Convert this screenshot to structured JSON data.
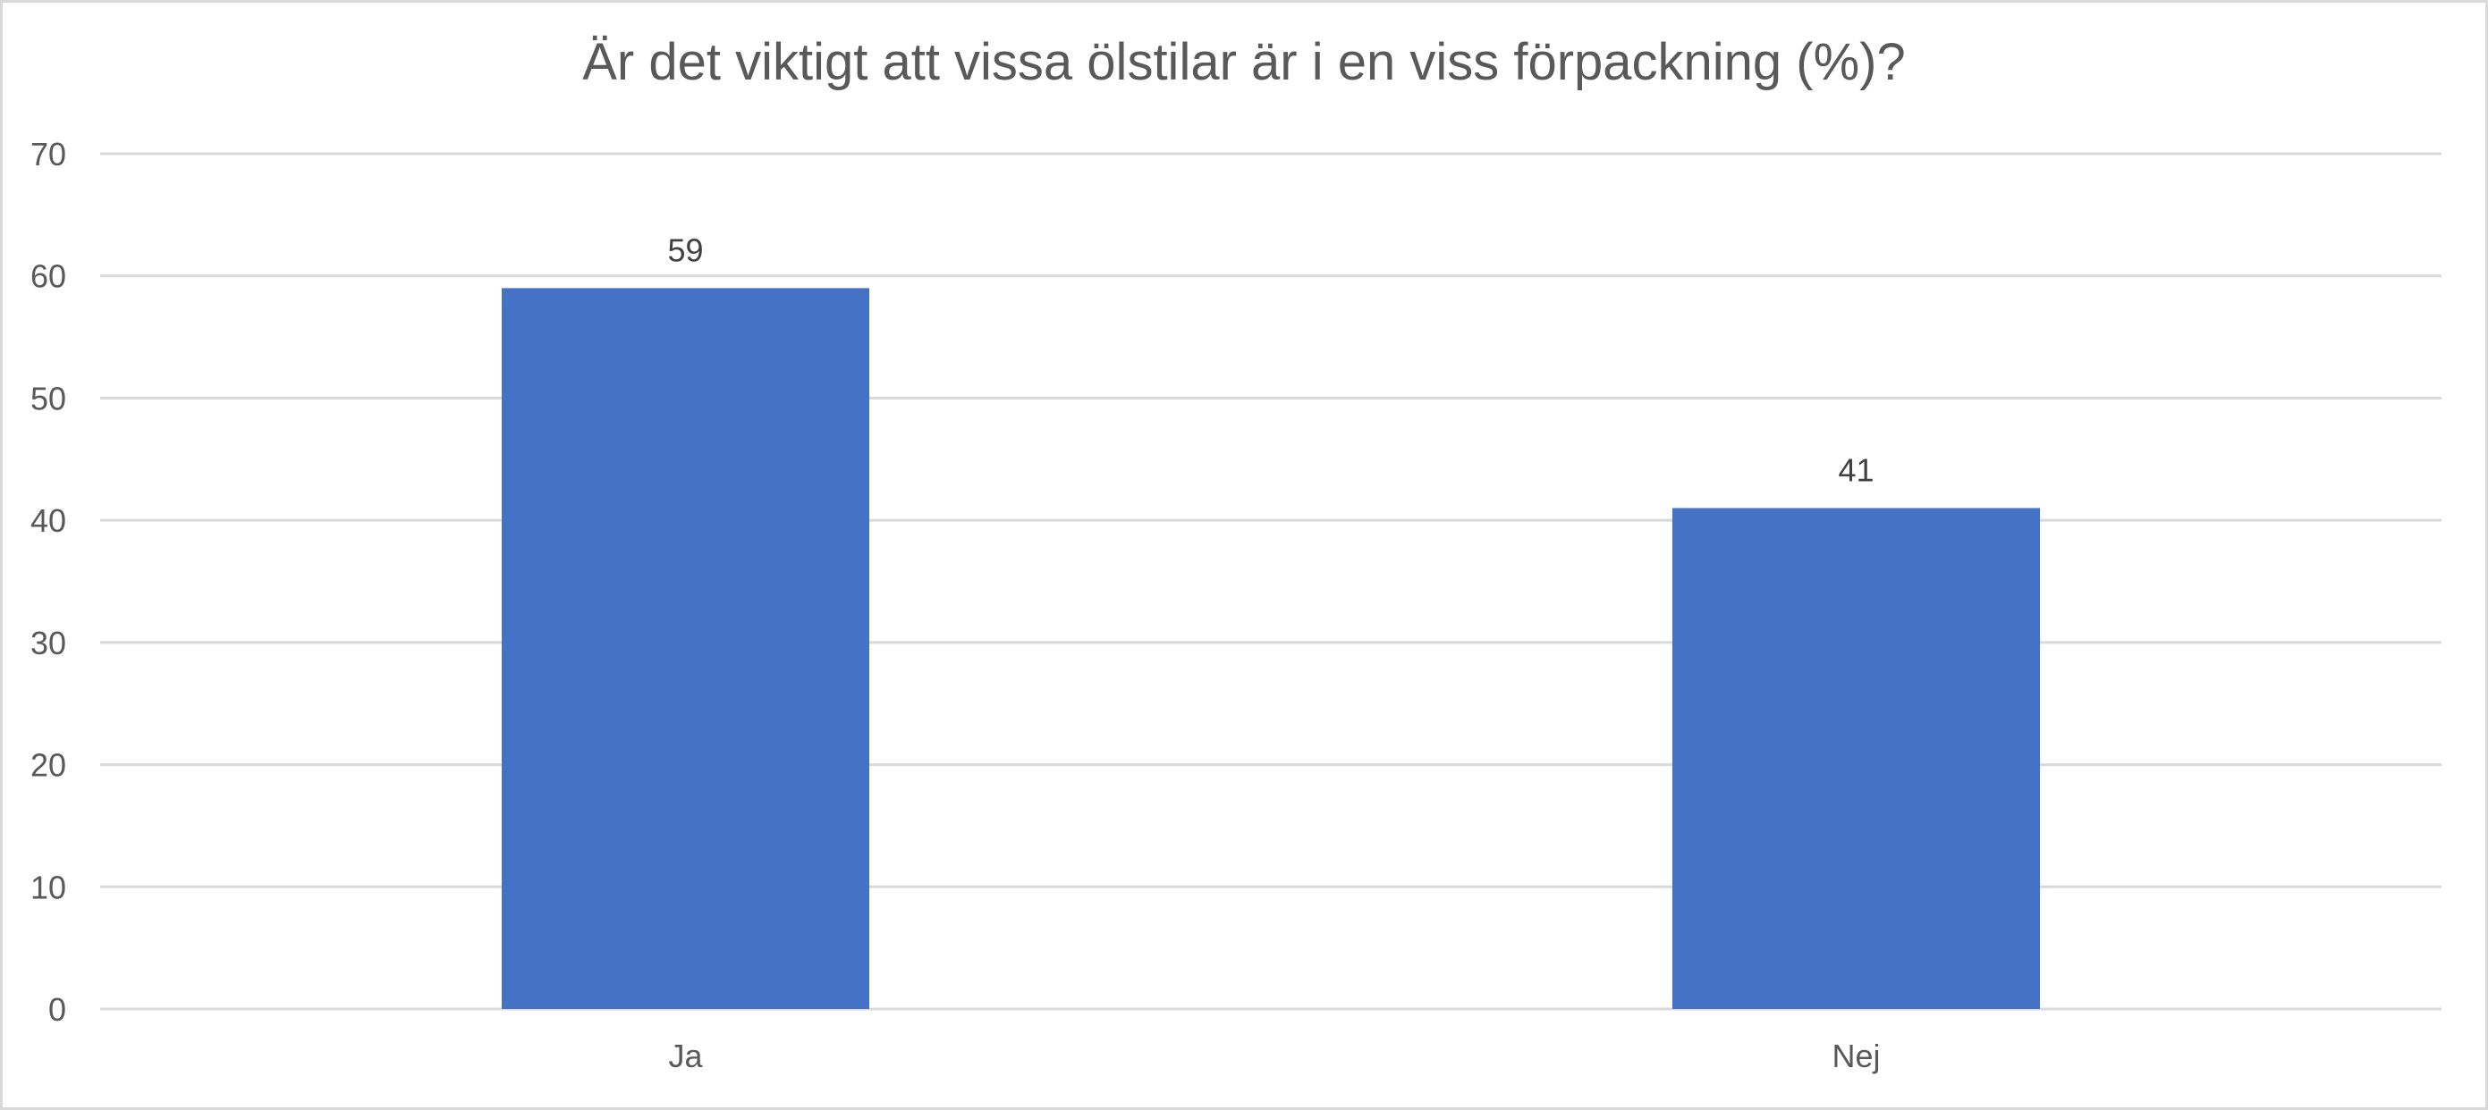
{
  "chart_data": {
    "type": "bar",
    "title": "Är det viktigt att vissa ölstilar är i en viss förpackning (%)?",
    "categories": [
      "Ja",
      "Nej"
    ],
    "values": [
      59,
      41
    ],
    "data_labels": [
      "59",
      "41"
    ],
    "ylim": [
      0,
      70
    ],
    "yticks": [
      0,
      10,
      20,
      30,
      40,
      50,
      60,
      70
    ],
    "ytick_labels": [
      "0",
      "10",
      "20",
      "30",
      "40",
      "50",
      "60",
      "70"
    ],
    "xlabel": "",
    "ylabel": "",
    "grid": true,
    "legend": "none",
    "bar_color": "#4472C4",
    "grid_color": "#d9d9d9"
  }
}
